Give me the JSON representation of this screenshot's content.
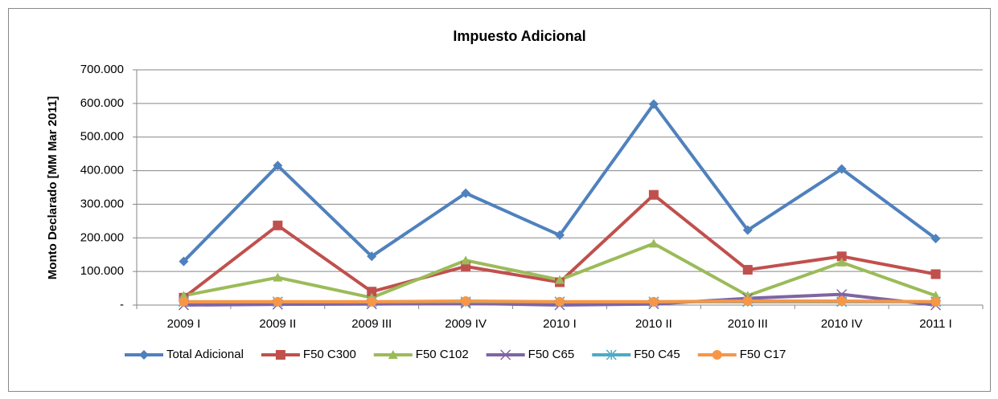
{
  "chart_data": {
    "type": "line",
    "title": "Impuesto Adicional",
    "y_label": "Monto Declarado  [MM Mar 2011]",
    "categories": [
      "2009 I",
      "2009 II",
      "2009 III",
      "2009 IV",
      "2010 I",
      "2010 II",
      "2010 III",
      "2010 IV",
      "2011 I"
    ],
    "series": [
      {
        "name": "Total Adicional",
        "color": "#4F81BD",
        "marker": "diamond",
        "values": [
          130000,
          415000,
          145000,
          333000,
          208000,
          598000,
          223000,
          405000,
          198000
        ]
      },
      {
        "name": "F50 C300",
        "color": "#C0504D",
        "marker": "square",
        "values": [
          22000,
          237000,
          40000,
          115000,
          68000,
          328000,
          105000,
          145000,
          92000
        ]
      },
      {
        "name": "F50 C102",
        "color": "#9BBB59",
        "marker": "triangle",
        "values": [
          28000,
          82000,
          22000,
          133000,
          75000,
          183000,
          28000,
          127000,
          28000
        ]
      },
      {
        "name": "F50 C65",
        "color": "#8064A2",
        "marker": "x",
        "values": [
          0,
          2000,
          3000,
          5000,
          0,
          3000,
          20000,
          32000,
          0
        ]
      },
      {
        "name": "F50 C45",
        "color": "#4BACC6",
        "marker": "star",
        "values": [
          10000,
          10000,
          10000,
          10000,
          10000,
          10000,
          10000,
          10000,
          10000
        ]
      },
      {
        "name": "F50 C17",
        "color": "#F79646",
        "marker": "circle",
        "values": [
          10000,
          10000,
          10000,
          12000,
          10000,
          10000,
          12000,
          12000,
          10000
        ]
      }
    ],
    "ylim": [
      0,
      700000
    ],
    "yticks": [
      {
        "value": 0,
        "label": "-"
      },
      {
        "value": 100000,
        "label": "100.000"
      },
      {
        "value": 200000,
        "label": "200.000"
      },
      {
        "value": 300000,
        "label": "300.000"
      },
      {
        "value": 400000,
        "label": "400.000"
      },
      {
        "value": 500000,
        "label": "500.000"
      },
      {
        "value": 600000,
        "label": "600.000"
      },
      {
        "value": 700000,
        "label": "700.000"
      }
    ],
    "grid": true,
    "legend": "bottom"
  }
}
